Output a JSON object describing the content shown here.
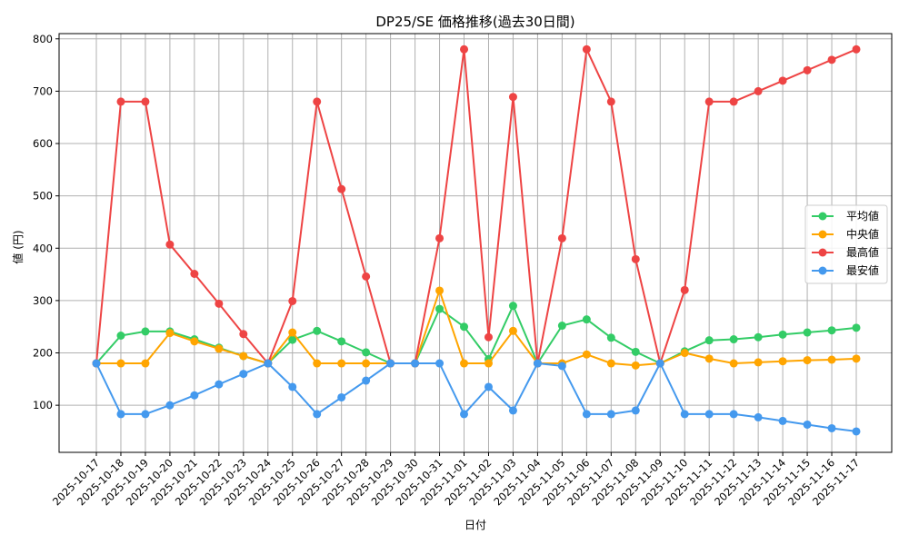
{
  "chart_data": {
    "type": "line",
    "title": "DP25/SE 価格推移(過去30日間)",
    "xlabel": "日付",
    "ylabel": "値 (円)",
    "ylim": [
      10,
      810
    ],
    "yticks": [
      100,
      200,
      300,
      400,
      500,
      600,
      700,
      800
    ],
    "grid": true,
    "legend_position": "center-right",
    "categories": [
      "2025-10-17",
      "2025-10-18",
      "2025-10-19",
      "2025-10-20",
      "2025-10-21",
      "2025-10-22",
      "2025-10-23",
      "2025-10-24",
      "2025-10-25",
      "2025-10-26",
      "2025-10-27",
      "2025-10-28",
      "2025-10-29",
      "2025-10-30",
      "2025-10-31",
      "2025-11-01",
      "2025-11-02",
      "2025-11-03",
      "2025-11-04",
      "2025-11-05",
      "2025-11-06",
      "2025-11-07",
      "2025-11-08",
      "2025-11-09",
      "2025-11-10",
      "2025-11-11",
      "2025-11-12",
      "2025-11-13",
      "2025-11-14",
      "2025-11-15",
      "2025-11-16",
      "2025-11-17"
    ],
    "series": [
      {
        "name": "平均値",
        "color": "#33cc66",
        "values": [
          180,
          233,
          241,
          241,
          226,
          210,
          194,
          180,
          225,
          242,
          222,
          201,
          180,
          180,
          284,
          250,
          188,
          290,
          180,
          252,
          264,
          229,
          202,
          180,
          203,
          224,
          226,
          230,
          235,
          239,
          243,
          248
        ]
      },
      {
        "name": "中央値",
        "color": "#ffa500",
        "values": [
          180,
          180,
          180,
          238,
          222,
          208,
          194,
          180,
          239,
          180,
          180,
          180,
          180,
          180,
          319,
          180,
          180,
          242,
          180,
          180,
          197,
          180,
          176,
          180,
          200,
          189,
          180,
          182,
          184,
          186,
          187,
          189
        ]
      },
      {
        "name": "最高値",
        "color": "#ee4444",
        "values": [
          180,
          680,
          680,
          407,
          351,
          294,
          236,
          180,
          299,
          680,
          513,
          346,
          180,
          180,
          419,
          780,
          230,
          689,
          180,
          419,
          780,
          680,
          379,
          180,
          320,
          680,
          680,
          700,
          720,
          740,
          760,
          780
        ]
      },
      {
        "name": "最安値",
        "color": "#4499ee",
        "values": [
          180,
          83,
          83,
          100,
          119,
          140,
          160,
          180,
          135,
          83,
          115,
          147,
          180,
          180,
          180,
          83,
          135,
          90,
          180,
          175,
          83,
          83,
          90,
          180,
          83,
          83,
          83,
          77,
          70,
          63,
          56,
          50
        ]
      }
    ]
  }
}
